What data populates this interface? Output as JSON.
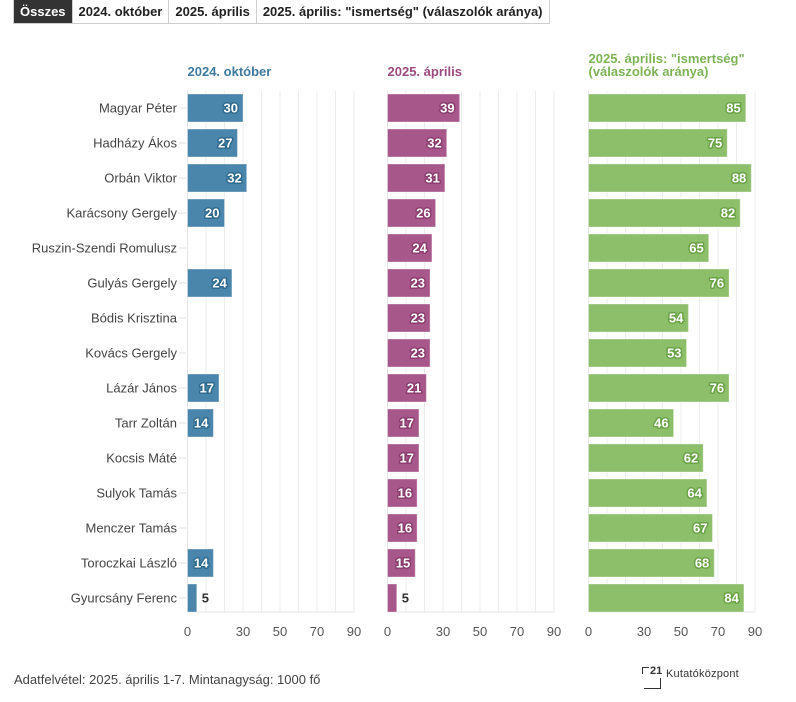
{
  "tabs": [
    {
      "label": "Összes",
      "active": true
    },
    {
      "label": "2024. október",
      "active": false
    },
    {
      "label": "2025. április",
      "active": false
    },
    {
      "label": "2025. április: \"ismertség\" (válaszolók aránya)",
      "active": false
    }
  ],
  "footer": {
    "note": "Adatfelvétel: 2025. április 1-7. Mintanagyság: 1000 fő",
    "logo_number": "21",
    "logo_text": "Kutatóközpont"
  },
  "chart_data": {
    "type": "bar",
    "orientation": "horizontal",
    "layout": "small-multiples",
    "categories": [
      "Magyar Péter",
      "Hadházy Ákos",
      "Orbán Viktor",
      "Karácsony Gergely",
      "Ruszin-Szendi Romulusz",
      "Gulyás Gergely",
      "Bódis Krisztina",
      "Kovács Gergely",
      "Lázár János",
      "Tarr Zoltán",
      "Kocsis Máté",
      "Sulyok Tamás",
      "Menczer Tamás",
      "Toroczkai László",
      "Gyurcsány Ferenc"
    ],
    "xlim": [
      0,
      90
    ],
    "xticks": [
      0,
      30,
      50,
      70,
      90
    ],
    "gridlines_every": 10,
    "grid": true,
    "series": [
      {
        "name": "2024. október",
        "title_lines": [
          "2024. október"
        ],
        "color": "#4a86ab",
        "label_stroke": "#2f6a8f",
        "values": [
          30,
          27,
          32,
          20,
          null,
          24,
          null,
          null,
          17,
          14,
          null,
          null,
          null,
          14,
          5
        ]
      },
      {
        "name": "2025. április",
        "title_lines": [
          "2025. április"
        ],
        "color": "#a8578a",
        "label_stroke": "#8a3d6e",
        "values": [
          39,
          32,
          31,
          26,
          24,
          23,
          23,
          23,
          21,
          17,
          17,
          16,
          16,
          15,
          5
        ]
      },
      {
        "name": "2025. április: \"ismertség\" (válaszolók aránya)",
        "title_lines": [
          "2025. április: \"ismertség\"",
          "(válaszolók aránya)"
        ],
        "color": "#8dbf6a",
        "label_stroke": "#6aa345",
        "values": [
          85,
          75,
          88,
          82,
          65,
          76,
          54,
          53,
          76,
          46,
          62,
          64,
          67,
          68,
          84
        ]
      }
    ]
  }
}
